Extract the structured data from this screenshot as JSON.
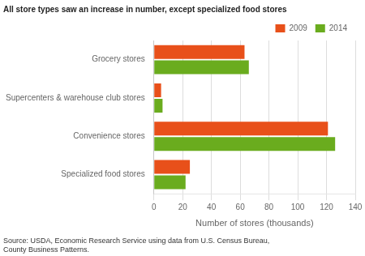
{
  "chart_data": {
    "type": "bar",
    "orientation": "horizontal",
    "title": "All store types saw an increase in number, except specialized food stores",
    "categories": [
      "Grocery stores",
      "Supercenters & warehouse club stores",
      "Convenience stores",
      "Specialized food stores"
    ],
    "series": [
      {
        "name": "2009",
        "color": "#e8501a",
        "values": [
          63,
          5,
          121,
          25
        ]
      },
      {
        "name": "2014",
        "color": "#6aac1e",
        "values": [
          66,
          6,
          126,
          22
        ]
      }
    ],
    "xlabel": "Number of stores (thousands)",
    "xlim": [
      0,
      140
    ],
    "xticks": [
      0,
      20,
      40,
      60,
      80,
      100,
      120,
      140
    ],
    "grid": "x",
    "legend": "upper right",
    "annotations": [
      "Source: USDA, Economic Research Service using data from U.S. Census Bureau,\nCounty Business Patterns."
    ]
  }
}
